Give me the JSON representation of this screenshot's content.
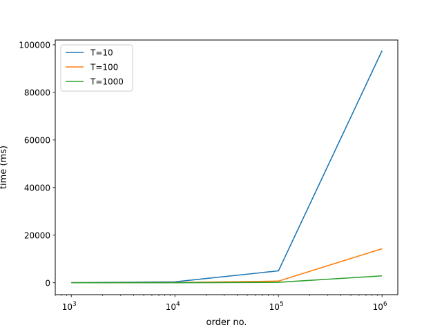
{
  "chart_data": {
    "type": "line",
    "xlabel": "order no.",
    "ylabel": "time (ms)",
    "xscale": "log",
    "xlim": [
      700,
      1420000
    ],
    "ylim": [
      -5000,
      102000
    ],
    "x": [
      1000,
      10000,
      100000,
      1000000
    ],
    "x_ticks": [
      {
        "value": 1000,
        "base": "10",
        "exp": "3"
      },
      {
        "value": 10000,
        "base": "10",
        "exp": "4"
      },
      {
        "value": 100000,
        "base": "10",
        "exp": "5"
      },
      {
        "value": 1000000,
        "base": "10",
        "exp": "6"
      }
    ],
    "y_ticks": [
      {
        "value": 0,
        "label": "0"
      },
      {
        "value": 20000,
        "label": "20000"
      },
      {
        "value": 40000,
        "label": "40000"
      },
      {
        "value": 60000,
        "label": "60000"
      },
      {
        "value": 80000,
        "label": "80000"
      },
      {
        "value": 100000,
        "label": "100000"
      }
    ],
    "series": [
      {
        "name": "T=10",
        "color": "#1f77b4",
        "values": [
          50,
          400,
          5000,
          97500
        ]
      },
      {
        "name": "T=100",
        "color": "#ff7f0e",
        "values": [
          10,
          100,
          700,
          14300
        ]
      },
      {
        "name": "T=1000",
        "color": "#2ca02c",
        "values": [
          5,
          20,
          200,
          2900
        ]
      }
    ],
    "legend": "upper-left",
    "grid": false
  }
}
